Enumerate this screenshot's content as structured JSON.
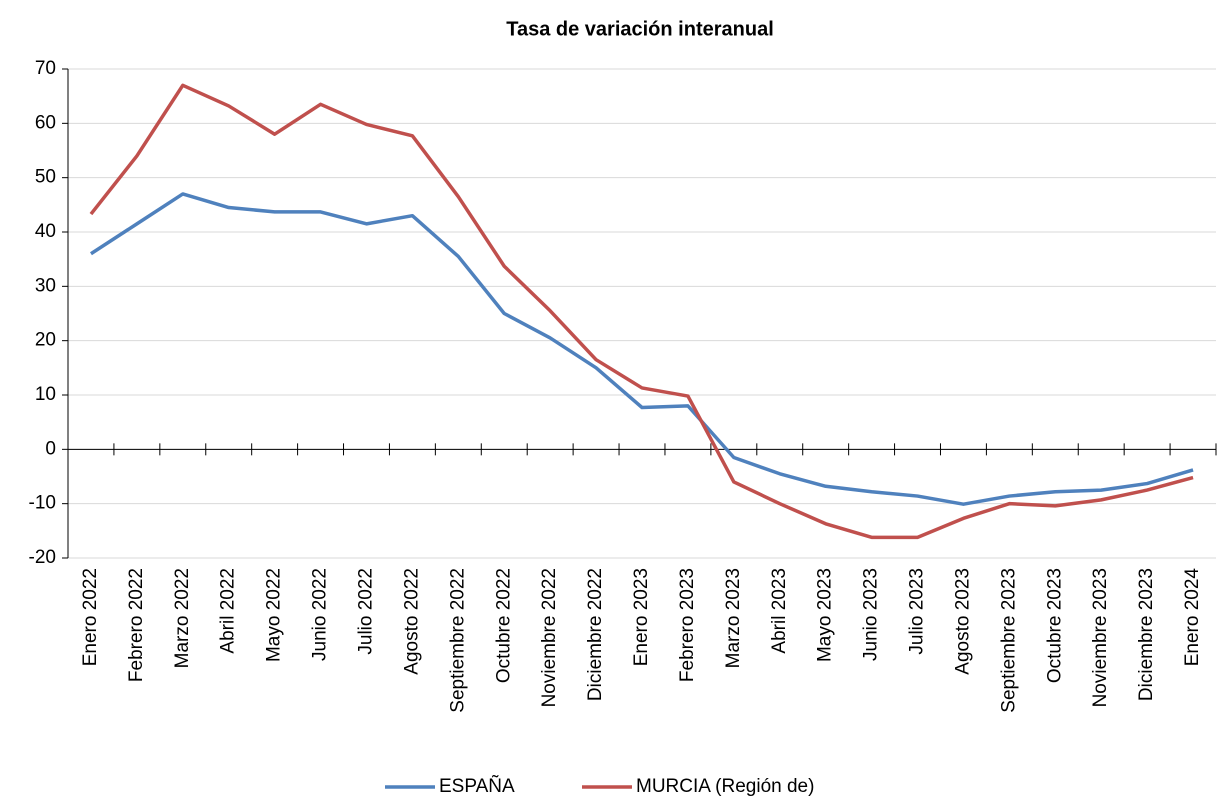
{
  "chart_data": {
    "type": "line",
    "title": "Tasa de variación interanual",
    "categories": [
      "Enero 2022",
      "Febrero 2022",
      "Marzo 2022",
      "Abril 2022",
      "Mayo 2022",
      "Junio 2022",
      "Julio 2022",
      "Agosto 2022",
      "Septiembre 2022",
      "Octubre 2022",
      "Noviembre 2022",
      "Diciembre 2022",
      "Enero 2023",
      "Febrero 2023",
      "Marzo 2023",
      "Abril 2023",
      "Mayo 2023",
      "Junio 2023",
      "Julio 2023",
      "Agosto 2023",
      "Septiembre 2023",
      "Octubre 2023",
      "Noviembre 2023",
      "Diciembre 2023",
      "Enero 2024"
    ],
    "series": [
      {
        "name": "ESPAÑA",
        "color": "#4f81bd",
        "values": [
          36,
          41.5,
          47,
          44.5,
          43.7,
          43.7,
          41.5,
          43,
          35.5,
          25,
          20.5,
          15,
          7.7,
          8,
          -1.5,
          -4.5,
          -6.8,
          -7.8,
          -8.6,
          -10.1,
          -8.6,
          -7.8,
          -7.5,
          -6.3,
          -3.8
        ]
      },
      {
        "name": "MURCIA (Región de)",
        "color": "#c0504d",
        "values": [
          43.3,
          54,
          67,
          63.2,
          58,
          63.5,
          59.8,
          57.7,
          46.5,
          33.7,
          25.5,
          16.5,
          11.3,
          9.8,
          -6,
          -10,
          -13.7,
          -16.2,
          -16.2,
          -12.7,
          -10,
          -10.4,
          -9.3,
          -7.5,
          -5.2
        ]
      }
    ],
    "ylim": [
      -20,
      70
    ],
    "yticks": [
      -20,
      -10,
      0,
      10,
      20,
      30,
      40,
      50,
      60,
      70
    ],
    "grid": true,
    "legend": "bottom"
  }
}
